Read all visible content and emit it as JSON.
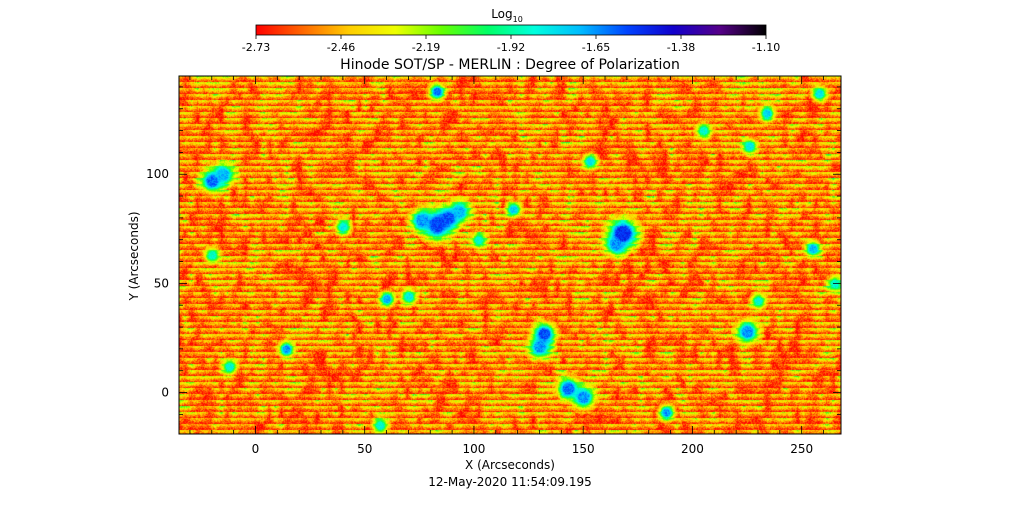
{
  "chart_data": {
    "type": "heatmap",
    "title": "Hinode SOT/SP - MERLIN : Degree of Polarization",
    "subtitle": "12-May-2020 11:54:09.195",
    "xlabel": "X (Arcseconds)",
    "ylabel": "Y (Arcseconds)",
    "xlim": [
      -35,
      268
    ],
    "ylim": [
      -19,
      145
    ],
    "xticks": [
      0,
      50,
      100,
      150,
      200,
      250
    ],
    "yticks": [
      0,
      50,
      100
    ],
    "grid": false,
    "colorbar": {
      "label_base": "Log",
      "label_sub": "10",
      "placement": "top",
      "range": [
        -2.73,
        -1.1
      ],
      "ticks": [
        "-2.73",
        "-2.46",
        "-2.19",
        "-1.92",
        "-1.65",
        "-1.38",
        "-1.10"
      ],
      "colors": [
        "#ff0000",
        "#ff6600",
        "#ffcc00",
        "#eeff00",
        "#66ff00",
        "#00ff66",
        "#00ffdd",
        "#00bbff",
        "#0044ff",
        "#1100cc",
        "#550088",
        "#000000"
      ]
    },
    "field": {
      "background_level": -2.55,
      "background_spread": 0.22
    },
    "magnetic_features": [
      {
        "x": 83,
        "y": 77,
        "peak": -1.55,
        "radius": 4
      },
      {
        "x": 88,
        "y": 80,
        "peak": -1.55,
        "radius": 3
      },
      {
        "x": 76,
        "y": 79,
        "peak": -1.65,
        "radius": 3
      },
      {
        "x": 93,
        "y": 83,
        "peak": -1.7,
        "radius": 3
      },
      {
        "x": 168,
        "y": 73,
        "peak": -1.5,
        "radius": 4
      },
      {
        "x": 165,
        "y": 68,
        "peak": -1.65,
        "radius": 3
      },
      {
        "x": 132,
        "y": 27,
        "peak": -1.55,
        "radius": 3
      },
      {
        "x": 130,
        "y": 21,
        "peak": -1.65,
        "radius": 3
      },
      {
        "x": 143,
        "y": 2,
        "peak": -1.6,
        "radius": 3
      },
      {
        "x": 150,
        "y": -2,
        "peak": -1.65,
        "radius": 3
      },
      {
        "x": -20,
        "y": 97,
        "peak": -1.6,
        "radius": 3
      },
      {
        "x": -15,
        "y": 100,
        "peak": -1.7,
        "radius": 3
      },
      {
        "x": 83,
        "y": 138,
        "peak": -1.6,
        "radius": 2
      },
      {
        "x": 188,
        "y": -9,
        "peak": -1.65,
        "radius": 2
      },
      {
        "x": 225,
        "y": 28,
        "peak": -1.65,
        "radius": 3
      },
      {
        "x": 14,
        "y": 20,
        "peak": -1.65,
        "radius": 2
      },
      {
        "x": 60,
        "y": 43,
        "peak": -1.7,
        "radius": 2
      },
      {
        "x": 118,
        "y": 84,
        "peak": -1.75,
        "radius": 2
      },
      {
        "x": 255,
        "y": 66,
        "peak": -1.7,
        "radius": 2
      },
      {
        "x": 234,
        "y": 128,
        "peak": -1.75,
        "radius": 2
      },
      {
        "x": 153,
        "y": 106,
        "peak": -1.8,
        "radius": 2
      },
      {
        "x": 226,
        "y": 113,
        "peak": -1.8,
        "radius": 2
      },
      {
        "x": 40,
        "y": 76,
        "peak": -1.8,
        "radius": 2
      },
      {
        "x": 102,
        "y": 70,
        "peak": -1.85,
        "radius": 2
      },
      {
        "x": 70,
        "y": 44,
        "peak": -1.8,
        "radius": 2
      },
      {
        "x": 205,
        "y": 120,
        "peak": -1.85,
        "radius": 2
      },
      {
        "x": 265,
        "y": 50,
        "peak": -1.85,
        "radius": 2
      },
      {
        "x": -12,
        "y": 12,
        "peak": -1.85,
        "radius": 2
      },
      {
        "x": -20,
        "y": 63,
        "peak": -1.85,
        "radius": 2
      },
      {
        "x": 258,
        "y": 137,
        "peak": -1.8,
        "radius": 2
      },
      {
        "x": 57,
        "y": -15,
        "peak": -1.85,
        "radius": 2
      },
      {
        "x": 230,
        "y": 42,
        "peak": -1.85,
        "radius": 2
      }
    ]
  }
}
